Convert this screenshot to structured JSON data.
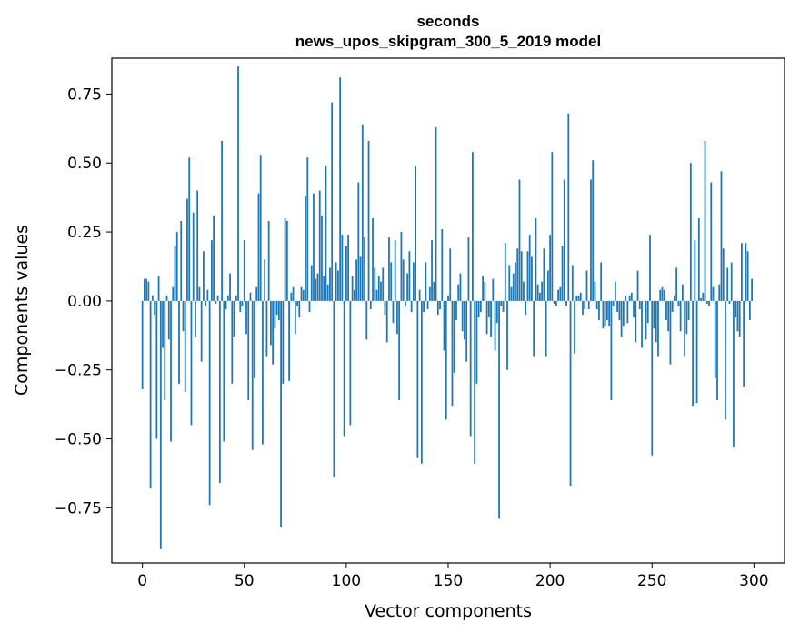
{
  "chart_data": {
    "type": "bar",
    "title": "seconds",
    "subtitle": "news_upos_skipgram_300_5_2019 model",
    "xlabel": "Vector components",
    "ylabel": "Components values",
    "xlim": [
      -15,
      315
    ],
    "ylim": [
      -0.95,
      0.88
    ],
    "xticks": [
      0,
      50,
      100,
      150,
      200,
      250,
      300
    ],
    "xtick_labels": [
      "0",
      "50",
      "100",
      "150",
      "200",
      "250",
      "300"
    ],
    "yticks": [
      -0.75,
      -0.5,
      -0.25,
      0.0,
      0.25,
      0.5,
      0.75
    ],
    "ytick_labels": [
      "−0.75",
      "−0.50",
      "−0.25",
      "0.00",
      "0.25",
      "0.50",
      "0.75"
    ],
    "bar_color": "#1f77b4",
    "grid": false,
    "n_components": 300,
    "values": [
      -0.32,
      0.08,
      0.08,
      0.07,
      -0.68,
      0.02,
      -0.05,
      -0.5,
      0.09,
      -0.9,
      -0.17,
      -0.36,
      0.02,
      -0.14,
      -0.51,
      0.05,
      0.2,
      0.25,
      -0.3,
      0.29,
      -0.11,
      -0.33,
      0.37,
      0.52,
      -0.45,
      0.32,
      -0.13,
      0.4,
      0.05,
      -0.22,
      0.18,
      -0.02,
      0.04,
      -0.74,
      0.22,
      0.31,
      -0.01,
      0.02,
      -0.66,
      0.58,
      -0.51,
      -0.03,
      0.02,
      0.1,
      -0.3,
      -0.13,
      0.02,
      0.85,
      -0.04,
      -0.02,
      0.22,
      -0.12,
      -0.36,
      0.03,
      -0.54,
      -0.28,
      0.05,
      0.39,
      0.53,
      -0.52,
      0.15,
      -0.2,
      0.29,
      -0.16,
      -0.23,
      -0.1,
      -0.05,
      -0.07,
      -0.82,
      -0.3,
      0.3,
      0.29,
      -0.29,
      0.03,
      0.05,
      -0.12,
      -0.02,
      -0.06,
      0.05,
      0.04,
      0.38,
      0.52,
      -0.04,
      0.13,
      0.39,
      0.08,
      0.1,
      0.4,
      0.31,
      0.09,
      0.49,
      0.06,
      0.12,
      0.72,
      -0.64,
      0.14,
      0.11,
      0.81,
      0.24,
      -0.49,
      0.2,
      0.24,
      -0.45,
      0.09,
      0.04,
      0.15,
      0.43,
      0.16,
      0.64,
      0.23,
      -0.14,
      0.58,
      -0.03,
      0.3,
      0.12,
      0.04,
      0.09,
      0.07,
      0.12,
      -0.05,
      -0.15,
      0.23,
      0.14,
      -0.08,
      0.22,
      -0.12,
      -0.36,
      0.25,
      0.15,
      -0.02,
      0.1,
      0.18,
      -0.04,
      0.14,
      0.49,
      -0.57,
      0.04,
      -0.59,
      -0.04,
      0.14,
      -0.03,
      0.05,
      0.22,
      0.07,
      0.63,
      -0.05,
      -0.03,
      0.26,
      -0.18,
      -0.43,
      0.02,
      0.19,
      -0.38,
      -0.26,
      -0.07,
      0.06,
      0.1,
      -0.11,
      -0.14,
      -0.22,
      0.23,
      -0.49,
      0.54,
      -0.59,
      -0.3,
      -0.06,
      -0.04,
      0.09,
      0.07,
      -0.12,
      -0.06,
      -0.13,
      0.08,
      -0.18,
      -0.08,
      -0.79,
      -0.02,
      -0.04,
      0.21,
      -0.25,
      0.13,
      0.05,
      0.1,
      0.14,
      0.19,
      0.44,
      0.18,
      0.07,
      -0.05,
      0.18,
      0.24,
      0.16,
      -0.2,
      0.3,
      0.06,
      0.03,
      0.07,
      0.19,
      -0.2,
      0.11,
      0.24,
      0.54,
      -0.01,
      -0.02,
      0.04,
      0.05,
      0.2,
      0.44,
      -0.02,
      0.68,
      -0.67,
      0.13,
      -0.19,
      0.02,
      0.02,
      0.03,
      -0.05,
      -0.03,
      0.11,
      -0.03,
      0.44,
      0.51,
      0.07,
      -0.03,
      -0.07,
      0.14,
      -0.1,
      -0.09,
      -0.07,
      -0.09,
      -0.36,
      -0.02,
      0.07,
      -0.04,
      -0.07,
      -0.13,
      -0.09,
      0.02,
      -0.08,
      0.02,
      0.03,
      -0.06,
      -0.15,
      0.11,
      -0.03,
      -0.17,
      0.0,
      -0.14,
      -0.08,
      0.24,
      -0.56,
      -0.1,
      -0.15,
      -0.2,
      0.04,
      0.05,
      0.04,
      -0.07,
      -0.11,
      -0.23,
      -0.04,
      0.02,
      0.12,
      -0.02,
      -0.11,
      0.06,
      -0.2,
      -0.12,
      -0.07,
      0.5,
      -0.38,
      0.22,
      -0.37,
      0.3,
      0.01,
      0.03,
      0.58,
      -0.01,
      -0.02,
      0.43,
      0.05,
      -0.28,
      -0.36,
      0.06,
      0.47,
      0.19,
      -0.43,
      0.12,
      -0.01,
      0.14,
      -0.53,
      -0.06,
      -0.11,
      -0.13,
      0.21,
      -0.31,
      0.21,
      0.18,
      -0.07,
      0.08
    ]
  }
}
